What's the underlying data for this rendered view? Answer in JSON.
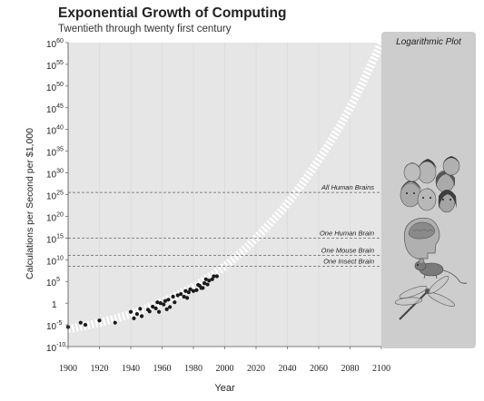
{
  "chart_data": {
    "type": "scatter",
    "title": "Exponential Growth of Computing",
    "subtitle": "Twentieth through twenty first century",
    "xlabel": "Year",
    "ylabel": "Calculations per Second per $1,000",
    "y_scale": "log10",
    "xlim": [
      1900,
      2100
    ],
    "ylim_exponent": [
      -10,
      60
    ],
    "x_ticks": [
      "1900",
      "1920",
      "1940",
      "1960",
      "1980",
      "2000",
      "2020",
      "2040",
      "2060",
      "2080",
      "2100"
    ],
    "y_ticks": [
      {
        "base": "10",
        "exp": "60",
        "v": 60
      },
      {
        "base": "10",
        "exp": "55",
        "v": 55
      },
      {
        "base": "10",
        "exp": "50",
        "v": 50
      },
      {
        "base": "10",
        "exp": "45",
        "v": 45
      },
      {
        "base": "10",
        "exp": "40",
        "v": 40
      },
      {
        "base": "10",
        "exp": "35",
        "v": 35
      },
      {
        "base": "10",
        "exp": "30",
        "v": 30
      },
      {
        "base": "10",
        "exp": "25",
        "v": 25
      },
      {
        "base": "10",
        "exp": "20",
        "v": 20
      },
      {
        "base": "10",
        "exp": "15",
        "v": 15
      },
      {
        "base": "10",
        "exp": "10",
        "v": 10
      },
      {
        "base": "10",
        "exp": "5",
        "v": 5
      },
      {
        "base": "1",
        "exp": "",
        "v": 0
      },
      {
        "base": "10",
        "exp": "-5",
        "v": -5
      },
      {
        "base": "10",
        "exp": "-10",
        "v": -10
      }
    ],
    "reference_lines": [
      {
        "label": "All Human Brains",
        "log10_value": 25.5
      },
      {
        "label": "One Human Brain",
        "log10_value": 15
      },
      {
        "label": "One Mouse Brain",
        "log10_value": 11
      },
      {
        "label": "One Insect Brain",
        "log10_value": 8.5
      }
    ],
    "panel_label": "Logarithmic Plot",
    "series": [
      {
        "points": [
          [
            1900,
            -5.5
          ],
          [
            1908,
            -4.5
          ],
          [
            1911,
            -5
          ],
          [
            1920,
            -4
          ],
          [
            1930,
            -4.5
          ],
          [
            1940,
            -2
          ],
          [
            1942,
            -3.5
          ],
          [
            1944,
            -2.5
          ],
          [
            1946,
            -1.3
          ],
          [
            1947,
            -3
          ],
          [
            1951,
            -1.5
          ],
          [
            1952,
            -1.9
          ],
          [
            1954,
            -0.8
          ],
          [
            1956,
            -1.2
          ],
          [
            1957,
            0.2
          ],
          [
            1958,
            -2
          ],
          [
            1959,
            0
          ],
          [
            1961,
            -0.3
          ],
          [
            1962,
            0.5
          ],
          [
            1963,
            -1.4
          ],
          [
            1964,
            0.8
          ],
          [
            1965,
            -0.9
          ],
          [
            1967,
            1.5
          ],
          [
            1968,
            0.2
          ],
          [
            1970,
            1.8
          ],
          [
            1972,
            2.1
          ],
          [
            1974,
            1.5
          ],
          [
            1975,
            2.8
          ],
          [
            1976,
            1.2
          ],
          [
            1977,
            2.5
          ],
          [
            1978,
            3.2
          ],
          [
            1980,
            2.8
          ],
          [
            1982,
            3
          ],
          [
            1983,
            4.2
          ],
          [
            1984,
            4
          ],
          [
            1985,
            3.5
          ],
          [
            1986,
            3.5
          ],
          [
            1987,
            4.6
          ],
          [
            1988,
            5.5
          ],
          [
            1989,
            4.3
          ],
          [
            1990,
            5.2
          ],
          [
            1992,
            5.5
          ],
          [
            1993,
            6.2
          ],
          [
            1995,
            6.2
          ]
        ]
      }
    ],
    "trend": {
      "style": "dashed-white-band",
      "points": [
        [
          1900,
          -6
        ],
        [
          1920,
          -4.5
        ],
        [
          1940,
          -2.5
        ],
        [
          1960,
          0.3
        ],
        [
          1980,
          3.8
        ],
        [
          2000,
          8.5
        ],
        [
          2020,
          15
        ],
        [
          2040,
          23
        ],
        [
          2060,
          33
        ],
        [
          2080,
          45
        ],
        [
          2100,
          60
        ]
      ]
    }
  },
  "colors": {
    "plot_bg": "#e6e6e6",
    "panel_bg": "#cdcdcd",
    "points": "#1a1a1a",
    "trend": "#ffffff",
    "ref_line": "#666666"
  },
  "icons": [
    "human-faces-icon",
    "brain-icon",
    "mouse-icon",
    "dragonfly-icon"
  ]
}
